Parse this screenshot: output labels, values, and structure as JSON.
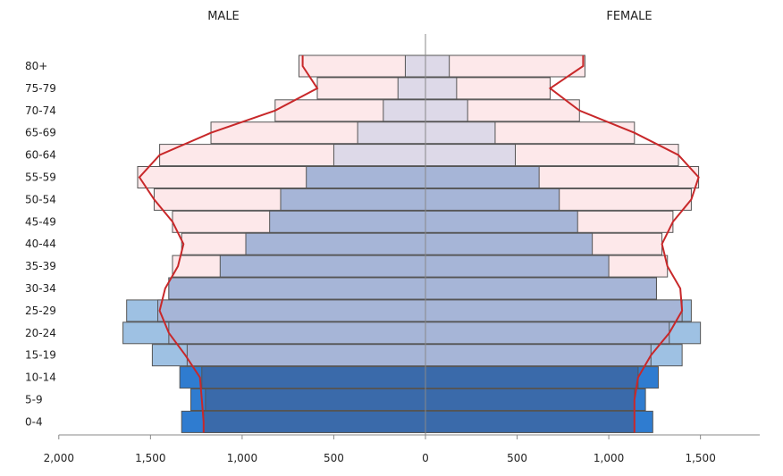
{
  "chart_data": {
    "type": "bar",
    "orientation": "horizontal-population-pyramid",
    "labels": {
      "left": "MALE",
      "right": "FEMALE"
    },
    "categories": [
      "80+",
      "75-79",
      "70-74",
      "65-69",
      "60-64",
      "55-59",
      "50-54",
      "45-49",
      "40-44",
      "35-39",
      "30-34",
      "25-29",
      "20-24",
      "15-19",
      "10-14",
      "5-9",
      "0-4"
    ],
    "x_ticks": [
      "2,000",
      "1,500",
      "1,000",
      "500",
      "0",
      "500",
      "1,000",
      "1,500"
    ],
    "x_tick_values": [
      -2000,
      -1500,
      -1000,
      -500,
      0,
      500,
      1000,
      1500
    ],
    "xlim": [
      -2000,
      1800
    ],
    "grid": false,
    "series": [
      {
        "key": "male_outline",
        "side": "male",
        "values": [
          690,
          590,
          820,
          1170,
          1450,
          1570,
          1480,
          1380,
          1330,
          1380,
          1400,
          1460,
          1400,
          1300,
          1220,
          1200,
          1210
        ]
      },
      {
        "key": "male_current",
        "side": "male",
        "values": [
          110,
          150,
          230,
          370,
          500,
          650,
          790,
          850,
          980,
          1120,
          1400,
          1630,
          1650,
          1490,
          1340,
          1280,
          1330
        ]
      },
      {
        "key": "female_outline",
        "side": "female",
        "values": [
          870,
          680,
          840,
          1140,
          1380,
          1490,
          1450,
          1350,
          1290,
          1320,
          1260,
          1400,
          1330,
          1230,
          1160,
          1140,
          1140
        ]
      },
      {
        "key": "female_current",
        "side": "female",
        "values": [
          130,
          170,
          230,
          380,
          490,
          620,
          730,
          830,
          910,
          1000,
          1260,
          1450,
          1500,
          1400,
          1270,
          1200,
          1240
        ]
      },
      {
        "key": "male_reference_line",
        "side": "male",
        "values": [
          670,
          590,
          820,
          1170,
          1450,
          1560,
          1480,
          1380,
          1320,
          1350,
          1420,
          1450,
          1400,
          1310,
          1230,
          1220,
          1210
        ]
      },
      {
        "key": "female_reference_line",
        "side": "female",
        "values": [
          860,
          680,
          840,
          1140,
          1380,
          1490,
          1450,
          1350,
          1290,
          1320,
          1390,
          1400,
          1330,
          1230,
          1160,
          1140,
          1140
        ]
      }
    ],
    "colors": {
      "outline_fill": "#fde8ea",
      "bar_stroke": "#555555",
      "reference_line": "#c8282a",
      "elderly_fill": "#ddd9e8",
      "adult_fill": "#a6b5d7",
      "overflow_fill": "#9ec1e3",
      "child_fill": "#3a6aaa",
      "child_overflow_fill": "#2f7cd0",
      "axis": "#888888"
    }
  }
}
